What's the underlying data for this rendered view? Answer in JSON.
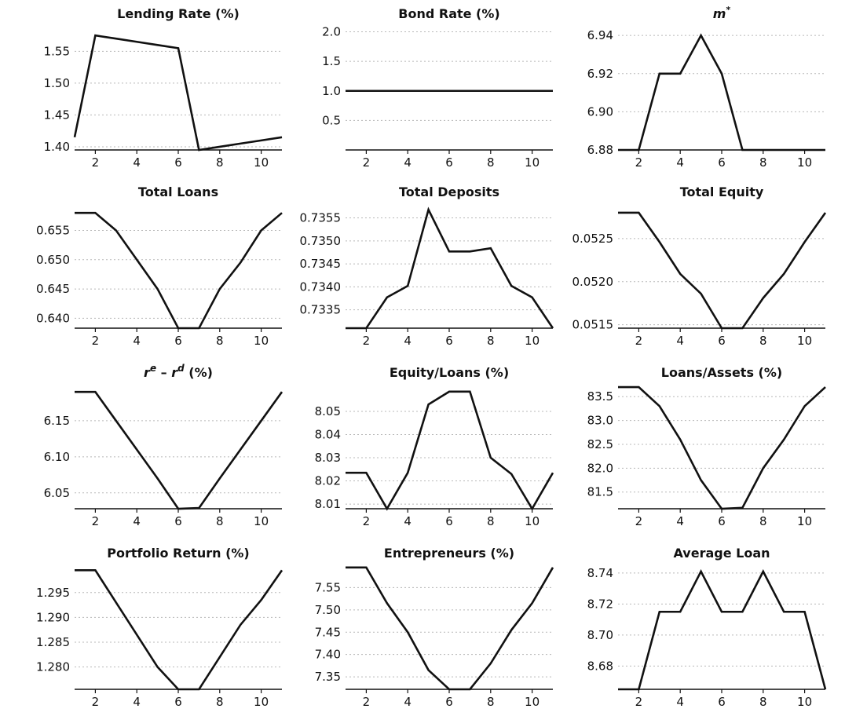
{
  "chart_data": [
    {
      "type": "line",
      "title": "Lending Rate (%)",
      "x": [
        1,
        2,
        3,
        4,
        5,
        6,
        7,
        8,
        9,
        10,
        11
      ],
      "values": [
        1.415,
        1.575,
        1.57,
        1.565,
        1.56,
        1.555,
        1.395,
        1.4,
        1.405,
        1.41,
        1.415
      ],
      "ylim": [
        1.395,
        1.59
      ],
      "yticks": [
        1.4,
        1.45,
        1.5,
        1.55
      ],
      "ytick_labels": [
        "1.40",
        "1.45",
        "1.50",
        "1.55"
      ],
      "xticks": [
        2,
        4,
        6,
        8,
        10
      ],
      "xtick_labels": [
        "2",
        "4",
        "6",
        "8",
        "10"
      ],
      "grid": true
    },
    {
      "type": "line",
      "title": "Bond Rate (%)",
      "x": [
        1,
        2,
        3,
        4,
        5,
        6,
        7,
        8,
        9,
        10,
        11
      ],
      "values": [
        1.0,
        1.0,
        1.0,
        1.0,
        1.0,
        1.0,
        1.0,
        1.0,
        1.0,
        1.0,
        1.0
      ],
      "ylim": [
        0.0,
        2.1
      ],
      "yticks": [
        0.5,
        1.0,
        1.5,
        2.0
      ],
      "ytick_labels": [
        "0.5",
        "1.0",
        "1.5",
        "2.0"
      ],
      "xticks": [
        2,
        4,
        6,
        8,
        10
      ],
      "xtick_labels": [
        "2",
        "4",
        "6",
        "8",
        "10"
      ],
      "grid": true
    },
    {
      "type": "line",
      "title_base": "m",
      "title_sup": "*",
      "x": [
        1,
        2,
        3,
        4,
        5,
        6,
        7,
        8,
        9,
        10,
        11
      ],
      "values": [
        6.88,
        6.88,
        6.92,
        6.92,
        6.94,
        6.92,
        6.88,
        6.88,
        6.88,
        6.88,
        6.88
      ],
      "ylim": [
        6.88,
        6.945
      ],
      "yticks": [
        6.88,
        6.9,
        6.92,
        6.94
      ],
      "ytick_labels": [
        "6.88",
        "6.90",
        "6.92",
        "6.94"
      ],
      "xticks": [
        2,
        4,
        6,
        8,
        10
      ],
      "xtick_labels": [
        "2",
        "4",
        "6",
        "8",
        "10"
      ],
      "grid": true
    },
    {
      "type": "line",
      "title": "Total Loans",
      "x": [
        1,
        2,
        3,
        4,
        5,
        6,
        7,
        8,
        9,
        10,
        11
      ],
      "values": [
        0.658,
        0.658,
        0.655,
        0.65,
        0.645,
        0.6383,
        0.6383,
        0.645,
        0.6495,
        0.655,
        0.658
      ],
      "ylim": [
        0.6383,
        0.6595
      ],
      "yticks": [
        0.64,
        0.645,
        0.65,
        0.655
      ],
      "ytick_labels": [
        "0.640",
        "0.645",
        "0.650",
        "0.655"
      ],
      "xticks": [
        2,
        4,
        6,
        8,
        10
      ],
      "xtick_labels": [
        "2",
        "4",
        "6",
        "8",
        "10"
      ],
      "grid": true
    },
    {
      "type": "line",
      "title": "Total Deposits",
      "x": [
        1,
        2,
        3,
        4,
        5,
        6,
        7,
        8,
        9,
        10,
        11
      ],
      "values": [
        0.7331,
        0.7331,
        0.73377,
        0.73402,
        0.73568,
        0.73477,
        0.73477,
        0.73484,
        0.73402,
        0.73377,
        0.7331
      ],
      "ylim": [
        0.7331,
        0.7358
      ],
      "yticks": [
        0.7335,
        0.734,
        0.7345,
        0.735,
        0.7355
      ],
      "ytick_labels": [
        "0.7335",
        "0.7340",
        "0.7345",
        "0.7350",
        "0.7355"
      ],
      "xticks": [
        2,
        4,
        6,
        8,
        10
      ],
      "xtick_labels": [
        "2",
        "4",
        "6",
        "8",
        "10"
      ],
      "grid": true
    },
    {
      "type": "line",
      "title": "Total Equity",
      "x": [
        1,
        2,
        3,
        4,
        5,
        6,
        7,
        8,
        9,
        10,
        11
      ],
      "values": [
        0.0528,
        0.0528,
        0.05246,
        0.05209,
        0.05186,
        0.05146,
        0.05146,
        0.05181,
        0.05209,
        0.05246,
        0.0528
      ],
      "ylim": [
        0.05146,
        0.0529
      ],
      "yticks": [
        0.0515,
        0.052,
        0.0525
      ],
      "ytick_labels": [
        "0.0515",
        "0.0520",
        "0.0525"
      ],
      "xticks": [
        2,
        4,
        6,
        8,
        10
      ],
      "xtick_labels": [
        "2",
        "4",
        "6",
        "8",
        "10"
      ],
      "grid": true
    },
    {
      "type": "line",
      "title_parts": [
        "r",
        "e",
        " – ",
        "r",
        "d",
        " (%)"
      ],
      "x": [
        1,
        2,
        3,
        4,
        5,
        6,
        7,
        8,
        9,
        10,
        11
      ],
      "values": [
        6.19,
        6.19,
        6.15,
        6.11,
        6.07,
        6.028,
        6.029,
        6.07,
        6.11,
        6.15,
        6.19
      ],
      "ylim": [
        6.028,
        6.2
      ],
      "yticks": [
        6.05,
        6.1,
        6.15
      ],
      "ytick_labels": [
        "6.05",
        "6.10",
        "6.15"
      ],
      "xticks": [
        2,
        4,
        6,
        8,
        10
      ],
      "xtick_labels": [
        "2",
        "4",
        "6",
        "8",
        "10"
      ],
      "grid": true
    },
    {
      "type": "line",
      "title": "Equity/Loans (%)",
      "x": [
        1,
        2,
        3,
        4,
        5,
        6,
        7,
        8,
        9,
        10,
        11
      ],
      "values": [
        8.0235,
        8.0235,
        8.008,
        8.0235,
        8.053,
        8.0585,
        8.0585,
        8.03,
        8.023,
        8.008,
        8.0235
      ],
      "ylim": [
        8.008,
        8.0615
      ],
      "yticks": [
        8.01,
        8.02,
        8.03,
        8.04,
        8.05
      ],
      "ytick_labels": [
        "8.01",
        "8.02",
        "8.03",
        "8.04",
        "8.05"
      ],
      "xticks": [
        2,
        4,
        6,
        8,
        10
      ],
      "xtick_labels": [
        "2",
        "4",
        "6",
        "8",
        "10"
      ],
      "grid": true
    },
    {
      "type": "line",
      "title": "Loans/Assets (%)",
      "x": [
        1,
        2,
        3,
        4,
        5,
        6,
        7,
        8,
        9,
        10,
        11
      ],
      "values": [
        83.7,
        83.7,
        83.3,
        82.6,
        81.75,
        81.15,
        81.17,
        82.0,
        82.6,
        83.3,
        83.7
      ],
      "ylim": [
        81.15,
        83.75
      ],
      "yticks": [
        81.5,
        82.0,
        82.5,
        83.0,
        83.5
      ],
      "ytick_labels": [
        "81.5",
        "82.0",
        "82.5",
        "83.0",
        "83.5"
      ],
      "xticks": [
        2,
        4,
        6,
        8,
        10
      ],
      "xtick_labels": [
        "2",
        "4",
        "6",
        "8",
        "10"
      ],
      "grid": true
    },
    {
      "type": "line",
      "title": "Portfolio Return (%)",
      "x": [
        1,
        2,
        3,
        4,
        5,
        6,
        7,
        8,
        9,
        10,
        11
      ],
      "values": [
        1.2995,
        1.2995,
        1.293,
        1.2865,
        1.28,
        1.2755,
        1.2755,
        1.282,
        1.2885,
        1.2935,
        1.2995
      ],
      "ylim": [
        1.2755,
        1.3005
      ],
      "yticks": [
        1.28,
        1.285,
        1.29,
        1.295
      ],
      "ytick_labels": [
        "1.280",
        "1.285",
        "1.290",
        "1.295"
      ],
      "xticks": [
        2,
        4,
        6,
        8,
        10
      ],
      "xtick_labels": [
        "2",
        "4",
        "6",
        "8",
        "10"
      ],
      "grid": true
    },
    {
      "type": "line",
      "title": "Entrepreneurs (%)",
      "x": [
        1,
        2,
        3,
        4,
        5,
        6,
        7,
        8,
        9,
        10,
        11
      ],
      "values": [
        7.595,
        7.595,
        7.515,
        7.45,
        7.365,
        7.322,
        7.322,
        7.38,
        7.455,
        7.515,
        7.595
      ],
      "ylim": [
        7.322,
        7.6
      ],
      "yticks": [
        7.35,
        7.4,
        7.45,
        7.5,
        7.55
      ],
      "ytick_labels": [
        "7.35",
        "7.40",
        "7.45",
        "7.50",
        "7.55"
      ],
      "xticks": [
        2,
        4,
        6,
        8,
        10
      ],
      "xtick_labels": [
        "2",
        "4",
        "6",
        "8",
        "10"
      ],
      "grid": true
    },
    {
      "type": "line",
      "title": "Average Loan",
      "x": [
        1,
        2,
        3,
        4,
        5,
        6,
        7,
        8,
        9,
        10,
        11
      ],
      "values": [
        8.665,
        8.665,
        8.715,
        8.715,
        8.741,
        8.715,
        8.715,
        8.741,
        8.715,
        8.715,
        8.665
      ],
      "ylim": [
        8.665,
        8.745
      ],
      "yticks": [
        8.68,
        8.7,
        8.72,
        8.74
      ],
      "ytick_labels": [
        "8.68",
        "8.70",
        "8.72",
        "8.74"
      ],
      "xticks": [
        2,
        4,
        6,
        8,
        10
      ],
      "xtick_labels": [
        "2",
        "4",
        "6",
        "8",
        "10"
      ],
      "grid": true
    }
  ]
}
